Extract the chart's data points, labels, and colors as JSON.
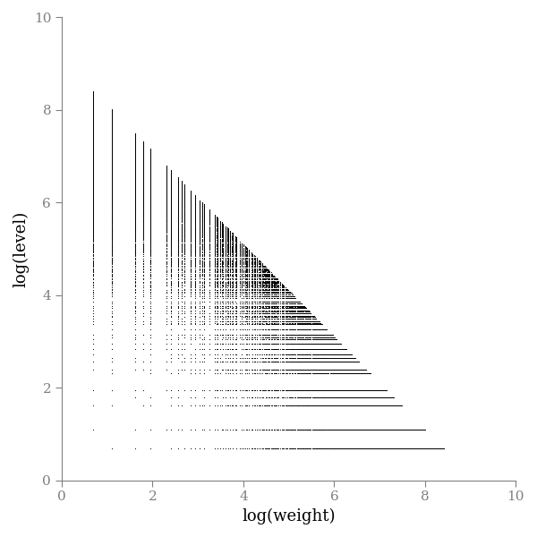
{
  "title": "",
  "xlabel": "log(weight)",
  "ylabel": "log(level)",
  "xlim": [
    0,
    10
  ],
  "ylim": [
    0,
    10
  ],
  "xticks": [
    0,
    2,
    4,
    6,
    8,
    10
  ],
  "yticks": [
    0,
    2,
    4,
    6,
    8,
    10
  ],
  "dot_size": 2.0,
  "dot_color": "#000000",
  "bg_color": "#ffffff",
  "figsize": [
    6.0,
    6.0
  ],
  "dpi": 100,
  "N_max": 9000
}
